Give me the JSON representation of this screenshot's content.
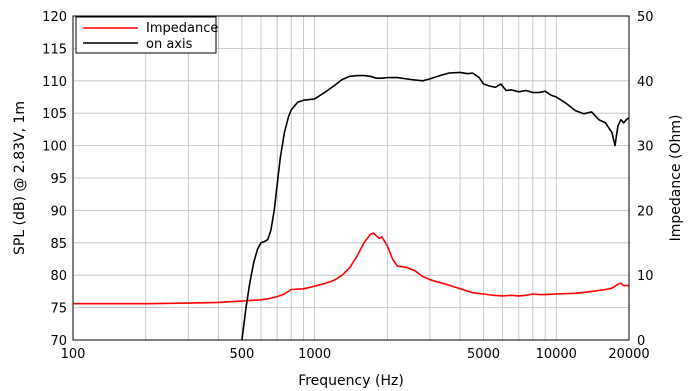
{
  "chart_data": {
    "type": "line",
    "xlabel": "Frequency (Hz)",
    "ylabel_left": "SPL (dB) @ 2.83V, 1m",
    "ylabel_right": "Impedance (Ohm)",
    "x_scale": "log",
    "xlim": [
      100,
      20000
    ],
    "ylim_left": [
      70,
      120
    ],
    "ylim_right": [
      0,
      50
    ],
    "x_ticks": [
      100,
      500,
      1000,
      5000,
      10000,
      20000
    ],
    "x_tick_labels": [
      "100",
      "500",
      "1000",
      "5000",
      "10000",
      "20000"
    ],
    "y_left_ticks": [
      70,
      75,
      80,
      85,
      90,
      95,
      100,
      105,
      110,
      115,
      120
    ],
    "y_right_ticks": [
      0,
      10,
      20,
      30,
      40,
      50
    ],
    "grid": true,
    "legend_position": "top-left",
    "series": [
      {
        "name": "Impedance",
        "color": "#ff0000",
        "axis": "right",
        "x": [
          100,
          200,
          300,
          400,
          500,
          600,
          650,
          700,
          750,
          800,
          900,
          1000,
          1100,
          1200,
          1300,
          1400,
          1500,
          1600,
          1700,
          1750,
          1800,
          1850,
          1900,
          2000,
          2100,
          2200,
          2400,
          2600,
          2800,
          3000,
          3500,
          4000,
          4500,
          5000,
          5500,
          6000,
          6500,
          7000,
          7500,
          8000,
          8500,
          9000,
          10000,
          12000,
          14000,
          16000,
          17000,
          18000,
          18500,
          19000,
          20000
        ],
        "y": [
          5.6,
          5.6,
          5.7,
          5.8,
          6.0,
          6.2,
          6.4,
          6.7,
          7.1,
          7.8,
          7.9,
          8.3,
          8.7,
          9.2,
          10.0,
          11.2,
          13.0,
          15.0,
          16.3,
          16.5,
          16.1,
          15.7,
          15.9,
          14.5,
          12.5,
          11.4,
          11.2,
          10.7,
          9.8,
          9.3,
          8.6,
          7.9,
          7.3,
          7.1,
          6.9,
          6.8,
          6.9,
          6.8,
          6.9,
          7.1,
          7.0,
          7.0,
          7.1,
          7.2,
          7.5,
          7.8,
          8.0,
          8.6,
          8.8,
          8.4,
          8.4
        ]
      },
      {
        "name": "on axis",
        "color": "#000000",
        "axis": "left",
        "x": [
          500,
          520,
          540,
          560,
          580,
          600,
          620,
          640,
          660,
          680,
          700,
          720,
          750,
          780,
          800,
          850,
          900,
          950,
          1000,
          1100,
          1200,
          1300,
          1400,
          1500,
          1600,
          1700,
          1800,
          1900,
          2000,
          2200,
          2500,
          2800,
          3000,
          3300,
          3600,
          4000,
          4300,
          4500,
          4800,
          5000,
          5300,
          5600,
          5900,
          6200,
          6500,
          7000,
          7500,
          8000,
          8500,
          9000,
          9500,
          10000,
          11000,
          12000,
          13000,
          14000,
          15000,
          16000,
          17000,
          17500,
          18000,
          18500,
          19000,
          19500,
          20000
        ],
        "y": [
          70,
          75,
          79,
          82,
          84,
          85,
          85.2,
          85.5,
          87,
          90,
          94,
          98,
          102,
          104.5,
          105.5,
          106.7,
          107,
          107.1,
          107.2,
          108.2,
          109.2,
          110.2,
          110.7,
          110.8,
          110.8,
          110.7,
          110.4,
          110.4,
          110.5,
          110.5,
          110.2,
          110,
          110.3,
          110.8,
          111.2,
          111.3,
          111.1,
          111.2,
          110.5,
          109.5,
          109.2,
          109,
          109.5,
          108.5,
          108.6,
          108.3,
          108.5,
          108.2,
          108.2,
          108.4,
          107.8,
          107.5,
          106.5,
          105.4,
          104.9,
          105.2,
          104,
          103.5,
          102,
          100,
          103,
          104,
          103.5,
          104,
          104.3
        ]
      }
    ]
  }
}
